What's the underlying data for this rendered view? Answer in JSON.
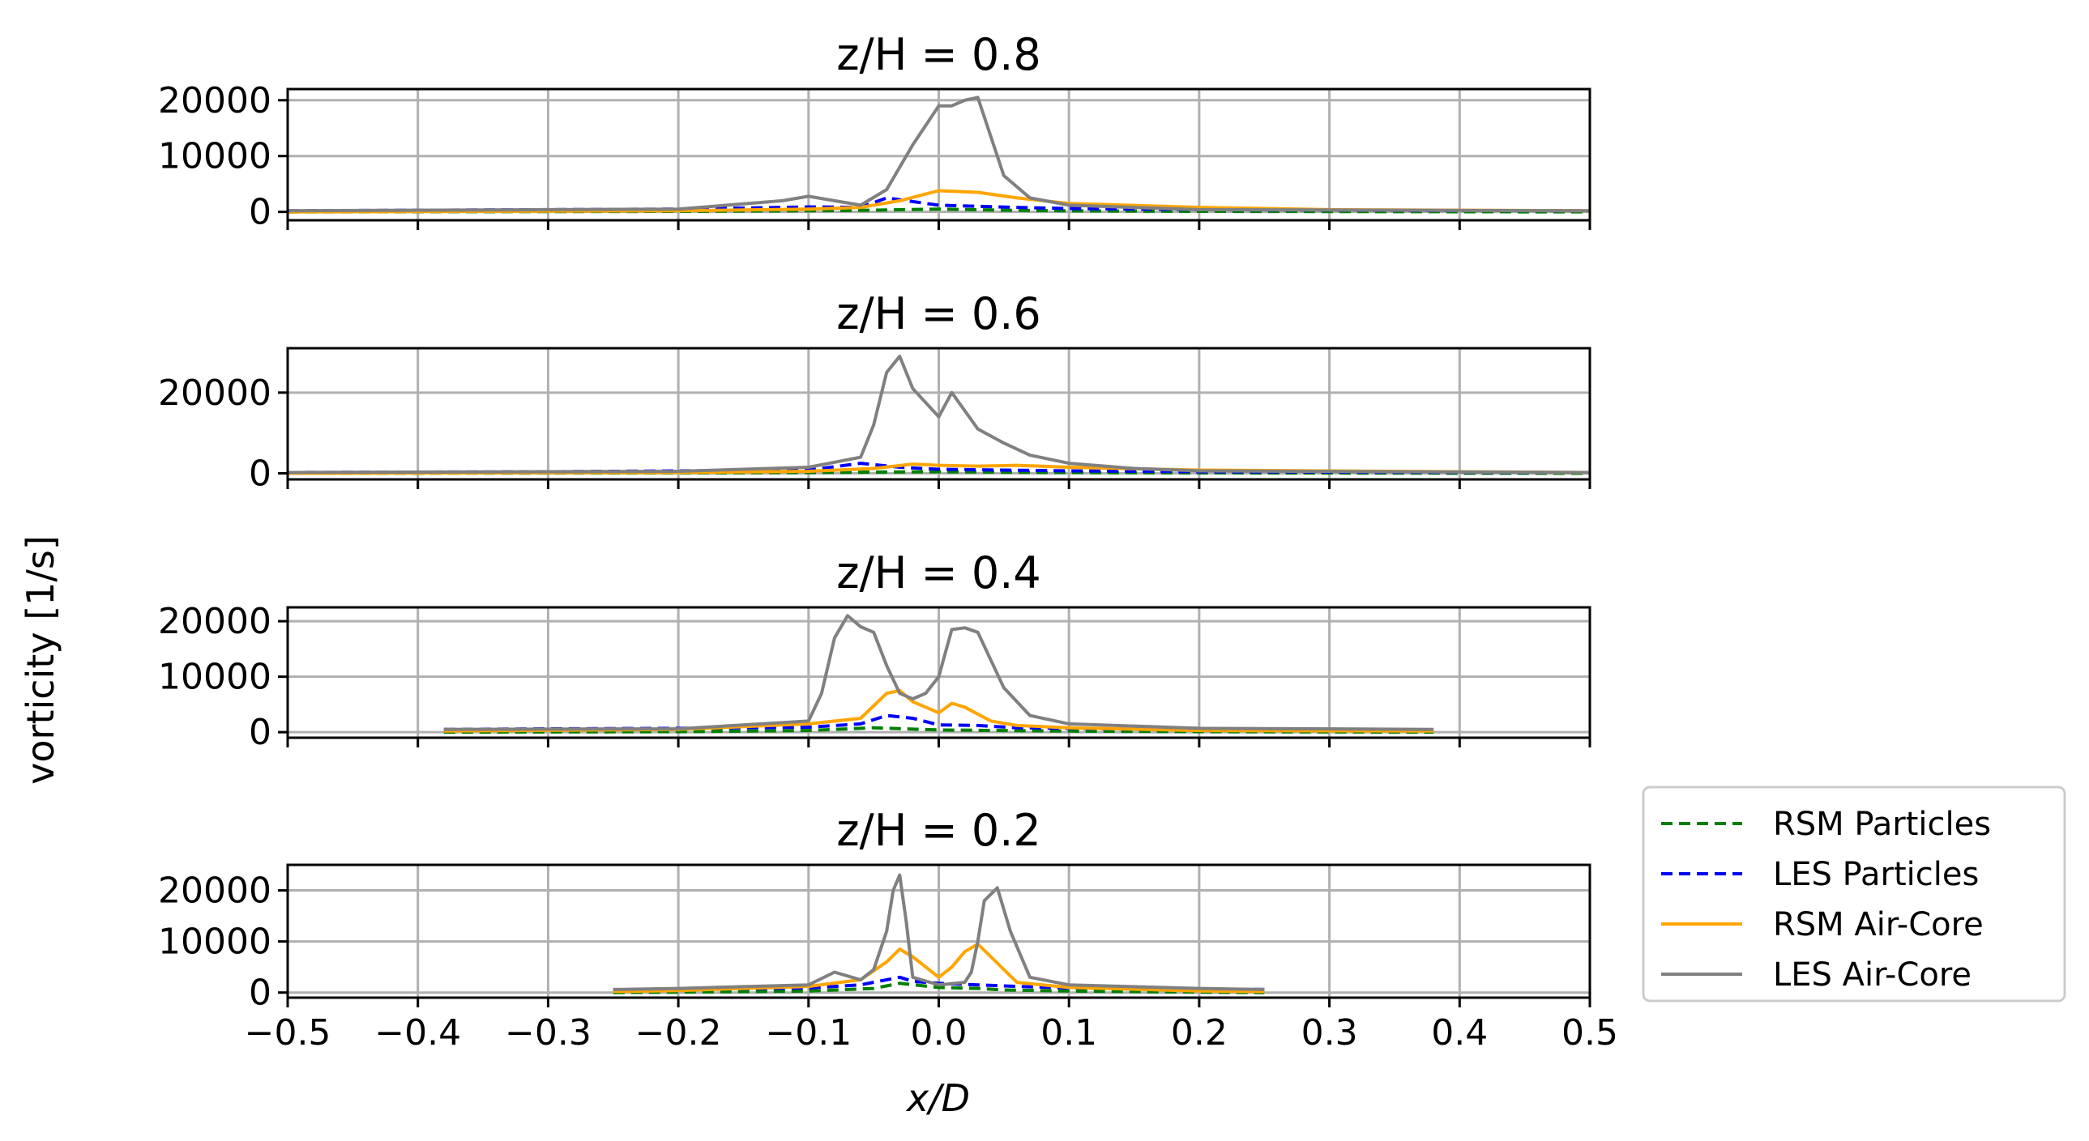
{
  "chart_data": {
    "type": "line",
    "ylabel": "vorticity [1/s]",
    "xlabel": "x/D",
    "xlim": [
      -0.5,
      0.5
    ],
    "xticks": [
      -0.5,
      -0.4,
      -0.3,
      -0.2,
      -0.1,
      0.0,
      0.1,
      0.2,
      0.3,
      0.4,
      0.5
    ],
    "xtick_labels": [
      "−0.5",
      "−0.4",
      "−0.3",
      "−0.2",
      "−0.1",
      "0.0",
      "0.1",
      "0.2",
      "0.3",
      "0.4",
      "0.5"
    ],
    "grid": true,
    "legend_placement": "right",
    "legend": [
      {
        "label": "RSM Particles",
        "color": "#008000",
        "style": "dashed"
      },
      {
        "label": "LES Particles",
        "color": "#0000ff",
        "style": "dashed"
      },
      {
        "label": "RSM Air-Core",
        "color": "#ffa500",
        "style": "solid"
      },
      {
        "label": "LES Air-Core",
        "color": "#808080",
        "style": "solid"
      }
    ],
    "panels": [
      {
        "title": "z/H = 0.8",
        "ylim": [
          -1500,
          22000
        ],
        "yticks": [
          0,
          10000,
          20000
        ],
        "ytick_labels": [
          "0",
          "10000",
          "20000"
        ],
        "series": [
          {
            "name": "RSM Particles",
            "x": [
              -0.5,
              -0.2,
              -0.1,
              -0.05,
              0.0,
              0.05,
              0.1,
              0.2,
              0.5
            ],
            "y": [
              0,
              100,
              200,
              300,
              500,
              300,
              200,
              100,
              0
            ]
          },
          {
            "name": "LES Particles",
            "x": [
              -0.5,
              -0.3,
              -0.2,
              -0.1,
              -0.06,
              -0.04,
              0.0,
              0.03,
              0.06,
              0.1,
              0.2,
              0.3,
              0.5
            ],
            "y": [
              200,
              400,
              500,
              900,
              800,
              2500,
              1200,
              1000,
              800,
              600,
              400,
              300,
              200
            ]
          },
          {
            "name": "RSM Air-Core",
            "x": [
              -0.5,
              -0.2,
              -0.1,
              -0.06,
              -0.03,
              0.0,
              0.03,
              0.06,
              0.1,
              0.2,
              0.3,
              0.5
            ],
            "y": [
              0,
              200,
              500,
              800,
              2000,
              3800,
              3500,
              2500,
              1500,
              800,
              400,
              200
            ]
          },
          {
            "name": "LES Air-Core",
            "x": [
              -0.5,
              -0.2,
              -0.12,
              -0.1,
              -0.08,
              -0.06,
              -0.04,
              -0.02,
              0.0,
              0.01,
              0.02,
              0.03,
              0.05,
              0.07,
              0.1,
              0.2,
              0.5
            ],
            "y": [
              200,
              500,
              2000,
              2800,
              2000,
              1200,
              4000,
              12000,
              19000,
              19000,
              20000,
              20500,
              6500,
              2500,
              1200,
              400,
              200
            ]
          }
        ]
      },
      {
        "title": "z/H = 0.6",
        "ylim": [
          -1500,
          31000
        ],
        "yticks": [
          0,
          20000
        ],
        "ytick_labels": [
          "0",
          "20000"
        ],
        "series": [
          {
            "name": "RSM Particles",
            "x": [
              -0.5,
              -0.2,
              -0.1,
              -0.05,
              0.0,
              0.05,
              0.1,
              0.2,
              0.5
            ],
            "y": [
              0,
              100,
              200,
              300,
              400,
              300,
              200,
              100,
              0
            ]
          },
          {
            "name": "LES Particles",
            "x": [
              -0.5,
              -0.3,
              -0.1,
              -0.06,
              -0.03,
              0.0,
              0.05,
              0.1,
              0.2,
              0.3,
              0.5
            ],
            "y": [
              200,
              400,
              800,
              2500,
              1500,
              1000,
              800,
              600,
              400,
              300,
              200
            ]
          },
          {
            "name": "RSM Air-Core",
            "x": [
              -0.5,
              -0.2,
              -0.1,
              -0.05,
              -0.02,
              0.0,
              0.03,
              0.06,
              0.1,
              0.2,
              0.5
            ],
            "y": [
              0,
              200,
              500,
              1200,
              2300,
              2000,
              1800,
              2000,
              1500,
              800,
              200
            ]
          },
          {
            "name": "LES Air-Core",
            "x": [
              -0.5,
              -0.2,
              -0.1,
              -0.06,
              -0.05,
              -0.04,
              -0.03,
              -0.02,
              0.0,
              0.01,
              0.03,
              0.05,
              0.07,
              0.1,
              0.15,
              0.2,
              0.5
            ],
            "y": [
              200,
              500,
              1500,
              4000,
              12000,
              25000,
              29000,
              21000,
              14000,
              20000,
              11000,
              7500,
              4500,
              2500,
              1200,
              600,
              200
            ]
          }
        ]
      },
      {
        "title": "z/H = 0.4",
        "ylim": [
          -1000,
          22500
        ],
        "yticks": [
          0,
          10000,
          20000
        ],
        "ytick_labels": [
          "0",
          "10000",
          "20000"
        ],
        "series": [
          {
            "name": "RSM Particles",
            "x": [
              -0.38,
              -0.2,
              -0.1,
              -0.05,
              0.0,
              0.05,
              0.1,
              0.2,
              0.38
            ],
            "y": [
              0,
              100,
              300,
              800,
              400,
              300,
              200,
              100,
              0
            ]
          },
          {
            "name": "LES Particles",
            "x": [
              -0.38,
              -0.3,
              -0.2,
              -0.1,
              -0.06,
              -0.04,
              -0.02,
              0.0,
              0.03,
              0.06,
              0.1,
              0.2,
              0.38
            ],
            "y": [
              500,
              600,
              700,
              900,
              1500,
              3000,
              2500,
              1300,
              1200,
              800,
              700,
              400,
              300
            ]
          },
          {
            "name": "RSM Air-Core",
            "x": [
              -0.38,
              -0.2,
              -0.1,
              -0.06,
              -0.04,
              -0.03,
              -0.02,
              0.0,
              0.01,
              0.02,
              0.04,
              0.06,
              0.1,
              0.2,
              0.38
            ],
            "y": [
              200,
              500,
              1500,
              2500,
              7000,
              7500,
              5500,
              3500,
              5200,
              4500,
              2000,
              1200,
              800,
              300,
              200
            ]
          },
          {
            "name": "LES Air-Core",
            "x": [
              -0.38,
              -0.2,
              -0.1,
              -0.09,
              -0.08,
              -0.07,
              -0.06,
              -0.05,
              -0.04,
              -0.03,
              -0.02,
              -0.01,
              0.0,
              0.01,
              0.02,
              0.03,
              0.05,
              0.07,
              0.1,
              0.2,
              0.38
            ],
            "y": [
              500,
              600,
              2000,
              7000,
              17000,
              21000,
              19000,
              18000,
              12000,
              7000,
              6000,
              7000,
              10000,
              18500,
              18800,
              18000,
              8000,
              3000,
              1500,
              700,
              500
            ]
          }
        ]
      },
      {
        "title": "z/H = 0.2",
        "ylim": [
          -1000,
          25000
        ],
        "yticks": [
          0,
          10000,
          20000
        ],
        "ytick_labels": [
          "0",
          "10000",
          "20000"
        ],
        "series": [
          {
            "name": "RSM Particles",
            "x": [
              -0.25,
              -0.2,
              -0.1,
              -0.05,
              -0.03,
              0.0,
              0.03,
              0.05,
              0.1,
              0.2,
              0.25
            ],
            "y": [
              0,
              100,
              300,
              800,
              1800,
              1000,
              800,
              500,
              300,
              100,
              0
            ]
          },
          {
            "name": "LES Particles",
            "x": [
              -0.25,
              -0.2,
              -0.1,
              -0.06,
              -0.04,
              -0.03,
              -0.02,
              0.0,
              0.03,
              0.06,
              0.1,
              0.2,
              0.25
            ],
            "y": [
              500,
              600,
              900,
              1500,
              2500,
              3000,
              2200,
              1800,
              1500,
              1200,
              900,
              700,
              600
            ]
          },
          {
            "name": "RSM Air-Core",
            "x": [
              -0.25,
              -0.2,
              -0.1,
              -0.06,
              -0.04,
              -0.03,
              -0.02,
              0.0,
              0.01,
              0.02,
              0.03,
              0.04,
              0.06,
              0.1,
              0.2,
              0.25
            ],
            "y": [
              200,
              400,
              1200,
              2500,
              6000,
              8500,
              7000,
              3000,
              5000,
              8000,
              9500,
              7000,
              2000,
              1000,
              300,
              200
            ]
          },
          {
            "name": "LES Air-Core",
            "x": [
              -0.25,
              -0.2,
              -0.1,
              -0.08,
              -0.06,
              -0.05,
              -0.04,
              -0.035,
              -0.03,
              -0.025,
              -0.02,
              0.0,
              0.02,
              0.025,
              0.03,
              0.035,
              0.045,
              0.055,
              0.07,
              0.1,
              0.2,
              0.25
            ],
            "y": [
              600,
              800,
              1500,
              4000,
              2500,
              4500,
              12000,
              20000,
              23000,
              14000,
              3000,
              1500,
              2000,
              4000,
              10000,
              18000,
              20500,
              12000,
              3000,
              1500,
              800,
              600
            ]
          }
        ]
      }
    ]
  }
}
